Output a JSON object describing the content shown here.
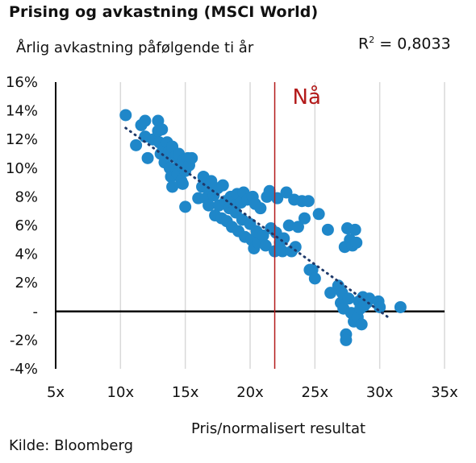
{
  "title": "Prising og avkastning (MSCI World)",
  "subtitle": "Årlig avkastning påfølgende ti år",
  "r2_label": "R",
  "r2_sup": "2",
  "r2_value": " = 0,8033",
  "source": "Kilde: Bloomberg",
  "colors": {
    "points": "#1f87c9",
    "trend": "#1f3a6b",
    "now_line": "#b31b1b",
    "grid": "#d9d9d9",
    "axis": "#000000"
  },
  "chart_data": {
    "type": "scatter",
    "title": "Prising og avkastning (MSCI World)",
    "xlabel": "Pris/normalisert resultat",
    "ylabel": "Årlig avkastning påfølgende ti år",
    "xlim": [
      5,
      35
    ],
    "ylim": [
      -4,
      16
    ],
    "x_ticks": [
      5,
      10,
      15,
      20,
      25,
      30,
      35
    ],
    "x_tick_labels": [
      "5x",
      "10x",
      "15x",
      "20x",
      "25x",
      "30x",
      "35x"
    ],
    "y_ticks": [
      -4,
      -2,
      0,
      2,
      4,
      6,
      8,
      10,
      12,
      14,
      16
    ],
    "y_tick_labels": [
      "-4%",
      "-2%",
      "-",
      "2%",
      "4%",
      "6%",
      "8%",
      "10%",
      "12%",
      "14%",
      "16%"
    ],
    "grid": "vertical",
    "annotation": {
      "text": "Nå",
      "x": 21.9
    },
    "trendline": {
      "style": "dotted",
      "x_start": 10.4,
      "y_start": 12.8,
      "x_end": 30.8,
      "y_end": -0.5
    },
    "r_squared": 0.8033,
    "points": [
      [
        10.4,
        13.7
      ],
      [
        11.2,
        11.6
      ],
      [
        11.6,
        13.0
      ],
      [
        11.9,
        13.3
      ],
      [
        11.9,
        12.2
      ],
      [
        12.1,
        10.7
      ],
      [
        12.5,
        12.0
      ],
      [
        12.9,
        13.3
      ],
      [
        12.9,
        12.6
      ],
      [
        13.0,
        11.8
      ],
      [
        13.1,
        11.0
      ],
      [
        13.2,
        12.7
      ],
      [
        13.3,
        11.4
      ],
      [
        13.4,
        10.4
      ],
      [
        13.6,
        11.8
      ],
      [
        13.7,
        11.1
      ],
      [
        13.8,
        10.0
      ],
      [
        13.9,
        9.4
      ],
      [
        14.0,
        8.7
      ],
      [
        14.0,
        11.5
      ],
      [
        14.2,
        10.8
      ],
      [
        14.3,
        10.0
      ],
      [
        14.4,
        9.6
      ],
      [
        14.5,
        11.0
      ],
      [
        14.6,
        10.2
      ],
      [
        14.7,
        9.1
      ],
      [
        14.8,
        8.9
      ],
      [
        14.9,
        10.6
      ],
      [
        15.0,
        7.3
      ],
      [
        15.0,
        9.8
      ],
      [
        15.2,
        10.7
      ],
      [
        15.3,
        10.2
      ],
      [
        15.5,
        10.7
      ],
      [
        16.0,
        7.9
      ],
      [
        16.3,
        8.7
      ],
      [
        16.4,
        9.4
      ],
      [
        16.6,
        7.9
      ],
      [
        16.7,
        8.6
      ],
      [
        16.8,
        7.4
      ],
      [
        17.0,
        9.1
      ],
      [
        17.2,
        8.1
      ],
      [
        17.3,
        6.7
      ],
      [
        17.5,
        8.6
      ],
      [
        17.6,
        7.4
      ],
      [
        17.8,
        6.5
      ],
      [
        17.9,
        8.8
      ],
      [
        18.1,
        7.7
      ],
      [
        18.2,
        6.3
      ],
      [
        18.4,
        7.2
      ],
      [
        18.5,
        8.0
      ],
      [
        18.6,
        5.9
      ],
      [
        18.8,
        7.4
      ],
      [
        18.9,
        6.9
      ],
      [
        19.0,
        8.2
      ],
      [
        19.1,
        5.6
      ],
      [
        19.3,
        7.6
      ],
      [
        19.4,
        6.4
      ],
      [
        19.5,
        8.3
      ],
      [
        19.6,
        5.2
      ],
      [
        19.8,
        7.8
      ],
      [
        20.0,
        6.1
      ],
      [
        20.1,
        5.0
      ],
      [
        20.2,
        8.0
      ],
      [
        20.3,
        4.4
      ],
      [
        20.4,
        7.5
      ],
      [
        20.5,
        5.6
      ],
      [
        20.6,
        4.8
      ],
      [
        20.8,
        7.2
      ],
      [
        21.0,
        5.3
      ],
      [
        21.2,
        4.6
      ],
      [
        21.3,
        8.0
      ],
      [
        21.5,
        8.4
      ],
      [
        21.6,
        5.8
      ],
      [
        21.9,
        4.2
      ],
      [
        22.0,
        5.5
      ],
      [
        22.1,
        7.9
      ],
      [
        22.3,
        4.8
      ],
      [
        22.5,
        4.2
      ],
      [
        22.6,
        5.1
      ],
      [
        22.8,
        8.3
      ],
      [
        23.0,
        6.0
      ],
      [
        23.2,
        4.2
      ],
      [
        23.4,
        7.8
      ],
      [
        23.5,
        4.5
      ],
      [
        23.7,
        5.9
      ],
      [
        24.0,
        7.7
      ],
      [
        24.2,
        6.5
      ],
      [
        24.5,
        7.7
      ],
      [
        24.6,
        2.9
      ],
      [
        24.8,
        2.9
      ],
      [
        25.0,
        2.3
      ],
      [
        25.3,
        6.8
      ],
      [
        26.0,
        5.7
      ],
      [
        26.2,
        1.3
      ],
      [
        26.8,
        1.8
      ],
      [
        27.0,
        0.6
      ],
      [
        27.1,
        1.3
      ],
      [
        27.2,
        0.2
      ],
      [
        27.3,
        4.5
      ],
      [
        27.4,
        -1.6
      ],
      [
        27.4,
        -2.0
      ],
      [
        27.5,
        5.8
      ],
      [
        27.6,
        0.9
      ],
      [
        27.7,
        5.0
      ],
      [
        27.8,
        -0.1
      ],
      [
        27.9,
        4.6
      ],
      [
        28.0,
        -0.7
      ],
      [
        28.1,
        5.7
      ],
      [
        28.2,
        4.8
      ],
      [
        28.3,
        -0.4
      ],
      [
        28.4,
        0.7
      ],
      [
        28.5,
        0.2
      ],
      [
        28.6,
        -0.9
      ],
      [
        28.7,
        1.0
      ],
      [
        28.8,
        0.4
      ],
      [
        29.0,
        0.6
      ],
      [
        29.2,
        0.9
      ],
      [
        29.9,
        0.7
      ],
      [
        30.0,
        0.3
      ],
      [
        31.6,
        0.3
      ]
    ]
  }
}
